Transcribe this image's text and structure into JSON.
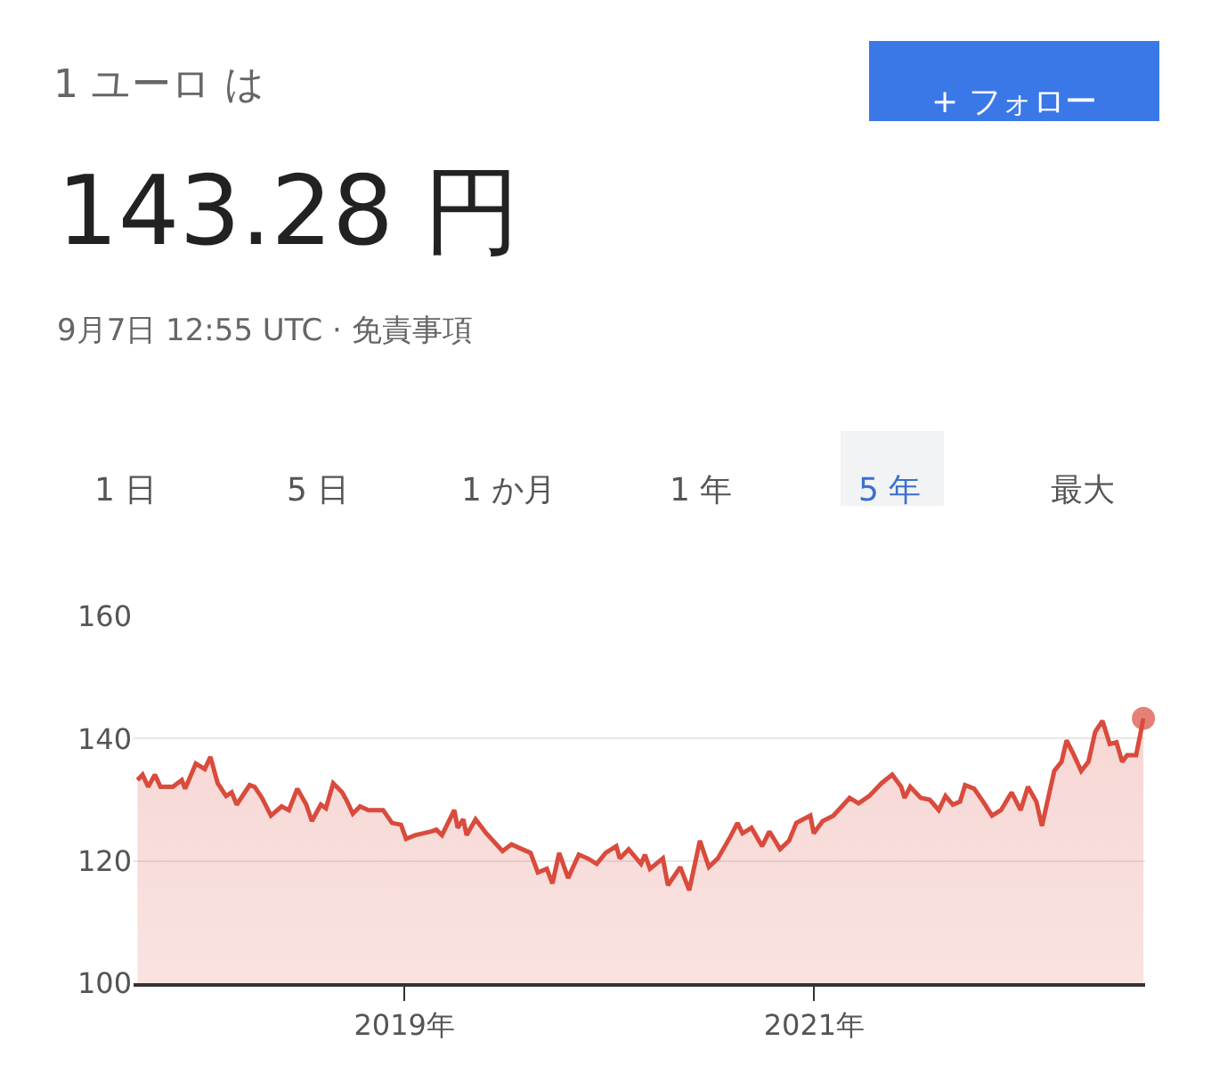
{
  "chart_data": {
    "type": "area",
    "title": "1 ユーロ は",
    "subtitle": "143.28 円",
    "annotations": [
      "9月7日 12:55 UTC · 免責事項",
      "+ フォロー",
      "1 日",
      "5 日",
      "1 か月",
      "1 年",
      "5 年",
      "最大"
    ],
    "x": [
      "2017-09-12",
      "2017-09-21",
      "2017-10-01",
      "2017-10-13",
      "2017-10-23",
      "2017-11-14",
      "2017-11-30",
      "2017-12-06",
      "2017-12-25",
      "2018-01-10",
      "2018-01-20",
      "2018-02-02",
      "2018-02-17",
      "2018-02-27",
      "2018-03-08",
      "2018-03-31",
      "2018-04-09",
      "2018-04-22",
      "2018-05-08",
      "2018-05-27",
      "2018-06-09",
      "2018-06-24",
      "2018-07-10",
      "2018-07-20",
      "2018-08-05",
      "2018-08-14",
      "2018-08-27",
      "2018-09-12",
      "2018-09-21",
      "2018-10-01",
      "2018-10-14",
      "2018-10-29",
      "2018-11-24",
      "2018-12-10",
      "2018-12-26",
      "2019-01-04",
      "2019-01-20",
      "2019-02-18",
      "2019-02-27",
      "2019-03-09",
      "2019-03-31",
      "2019-04-06",
      "2019-04-16",
      "2019-04-22",
      "2019-05-08",
      "2019-05-27",
      "2019-06-25",
      "2019-07-11",
      "2019-07-30",
      "2019-08-14",
      "2019-08-27",
      "2019-09-12",
      "2019-09-22",
      "2019-10-04",
      "2019-10-20",
      "2019-11-08",
      "2019-11-24",
      "2019-12-10",
      "2019-12-26",
      "2020-01-14",
      "2020-01-20",
      "2020-02-05",
      "2020-02-27",
      "2020-03-05",
      "2020-03-14",
      "2020-04-06",
      "2020-04-15",
      "2020-05-07",
      "2020-05-23",
      "2020-06-11",
      "2020-06-27",
      "2020-07-13",
      "2020-08-04",
      "2020-08-17",
      "2020-08-26",
      "2020-09-11",
      "2020-09-30",
      "2020-10-13",
      "2020-10-23",
      "2020-11-01",
      "2020-11-17",
      "2020-11-30",
      "2020-12-25",
      "2020-12-31",
      "2021-01-16",
      "2021-02-04",
      "2021-03-05",
      "2021-03-21",
      "2021-04-09",
      "2021-05-01",
      "2021-05-20",
      "2021-06-05",
      "2021-06-11",
      "2021-06-21",
      "2021-07-10",
      "2021-07-26",
      "2021-08-11",
      "2021-08-23",
      "2021-09-05",
      "2021-09-18",
      "2021-09-27",
      "2021-10-13",
      "2021-10-29",
      "2021-11-14",
      "2021-11-30",
      "2021-12-19",
      "2022-01-04",
      "2022-01-17",
      "2022-02-01",
      "2022-02-11",
      "2022-03-05",
      "2022-03-18",
      "2022-03-27",
      "2022-04-09",
      "2022-04-22",
      "2022-05-05",
      "2022-05-17",
      "2022-05-30",
      "2022-06-12",
      "2022-06-24",
      "2022-07-04",
      "2022-07-13",
      "2022-07-29",
      "2022-08-11"
    ],
    "series": [
      {
        "color": "#d94b3d",
        "values": [
          133.2,
          134.1,
          132.1,
          134.1,
          132.1,
          132.1,
          133.2,
          131.8,
          135.9,
          135.0,
          137.0,
          132.7,
          130.6,
          131.2,
          129.2,
          132.4,
          132.1,
          130.3,
          127.4,
          128.9,
          128.3,
          131.8,
          129.2,
          126.5,
          129.2,
          128.6,
          132.7,
          131.2,
          129.7,
          127.7,
          128.9,
          128.3,
          128.3,
          126.2,
          125.9,
          123.6,
          124.2,
          124.8,
          125.1,
          124.2,
          128.3,
          125.4,
          126.8,
          124.2,
          126.8,
          124.5,
          121.6,
          122.7,
          121.9,
          121.3,
          118.1,
          118.7,
          116.3,
          121.3,
          117.2,
          121.0,
          120.4,
          119.5,
          121.3,
          122.4,
          120.4,
          121.9,
          119.5,
          121.0,
          118.7,
          120.4,
          116.0,
          119.0,
          115.2,
          123.3,
          119.0,
          120.4,
          123.9,
          126.2,
          124.5,
          125.4,
          122.4,
          124.8,
          123.3,
          121.9,
          123.3,
          126.2,
          127.4,
          124.5,
          126.5,
          127.4,
          130.3,
          129.4,
          130.6,
          132.7,
          134.1,
          132.1,
          130.3,
          132.1,
          130.3,
          130.0,
          128.3,
          130.6,
          129.2,
          129.7,
          132.4,
          131.8,
          129.7,
          127.4,
          128.3,
          131.2,
          128.3,
          132.1,
          129.7,
          125.7,
          134.7,
          136.2,
          139.7,
          137.3,
          134.7,
          136.2,
          141.1,
          142.9,
          139.1,
          139.4,
          136.2,
          137.3,
          137.3,
          143.3
        ]
      }
    ],
    "xlim": [
      "2017-09-05",
      "2022-08-14"
    ],
    "xticks": [
      {
        "value": "2019-01-01",
        "label": "2019年"
      },
      {
        "value": "2021-01-01",
        "label": "2021年"
      }
    ],
    "ylim": [
      100,
      160
    ],
    "yticks": [
      100,
      120,
      140,
      160
    ],
    "grid": "y"
  }
}
